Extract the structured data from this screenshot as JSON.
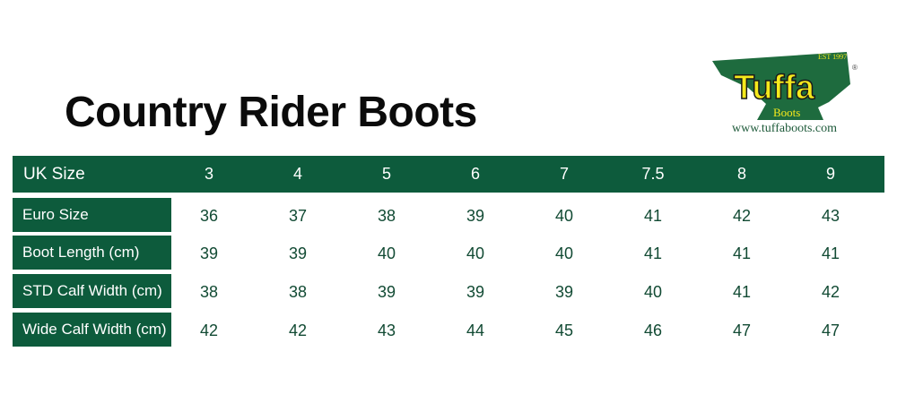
{
  "title": "Country Rider Boots",
  "logo": {
    "brand": "Tuffa",
    "sub": "Boots",
    "est": "EST 1997",
    "url": "www.tuffaboots.com",
    "green": "#1e6b3e",
    "yellow": "#f5e91c"
  },
  "colors": {
    "header_bg": "#0d5b3c",
    "value_text": "#114a33"
  },
  "table": {
    "header": {
      "label": "UK Size",
      "values": [
        "3",
        "4",
        "5",
        "6",
        "7",
        "7.5",
        "8",
        "9"
      ]
    },
    "rows": [
      {
        "label": "Euro Size",
        "values": [
          "36",
          "37",
          "38",
          "39",
          "40",
          "41",
          "42",
          "43"
        ]
      },
      {
        "label": "Boot Length (cm)",
        "values": [
          "39",
          "39",
          "40",
          "40",
          "40",
          "41",
          "41",
          "41"
        ]
      },
      {
        "label": "STD Calf Width (cm)",
        "values": [
          "38",
          "38",
          "39",
          "39",
          "39",
          "40",
          "41",
          "42"
        ]
      },
      {
        "label": "Wide Calf Width (cm)",
        "values": [
          "42",
          "42",
          "43",
          "44",
          "45",
          "46",
          "47",
          "47"
        ]
      }
    ]
  }
}
